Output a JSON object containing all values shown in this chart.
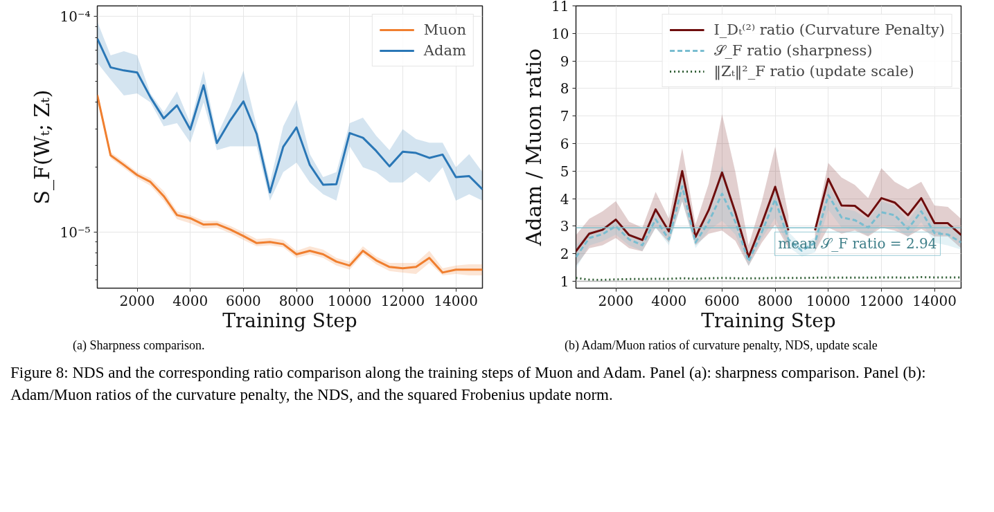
{
  "chart_data": [
    {
      "type": "line",
      "xlabel": "Training Step",
      "ylabel": "S_F(Wₜ; Zₜ)",
      "log": "y",
      "grid": true,
      "legend": "top right",
      "marker": "none",
      "x": [
        500,
        1000,
        1500,
        2000,
        2500,
        3000,
        3500,
        4000,
        4500,
        5000,
        5500,
        6000,
        6500,
        7000,
        7500,
        8000,
        8500,
        9000,
        9500,
        10000,
        10500,
        11000,
        11500,
        12000,
        12500,
        13000,
        13500,
        14000,
        14500,
        15000
      ],
      "xlim": [
        500,
        15000
      ],
      "xticks": [
        2000,
        4000,
        6000,
        8000,
        10000,
        12000,
        14000
      ],
      "ylim": [
        5.5e-06,
        0.000112
      ],
      "yticks": [
        {
          "value": 6e-06,
          "label": null
        },
        {
          "value": 7e-06,
          "label": null
        },
        {
          "value": 8e-06,
          "label": null
        },
        {
          "value": 9e-06,
          "label": null
        },
        {
          "value": 1e-05,
          "label": "10⁻⁵"
        },
        {
          "value": 2e-05,
          "label": null
        },
        {
          "value": 3e-05,
          "label": null
        },
        {
          "value": 4e-05,
          "label": null
        },
        {
          "value": 5e-05,
          "label": null
        },
        {
          "value": 6e-05,
          "label": null
        },
        {
          "value": 7e-05,
          "label": null
        },
        {
          "value": 8e-05,
          "label": null
        },
        {
          "value": 9e-05,
          "label": null
        },
        {
          "value": 0.0001,
          "label": "10⁻⁴"
        }
      ],
      "series": [
        {
          "name": "Muon",
          "color": "#f07f2f",
          "line_style": "solid",
          "values": [
            4.32e-05,
            2.27e-05,
            2.05e-05,
            1.84e-05,
            1.71e-05,
            1.47e-05,
            1.2e-05,
            1.16e-05,
            1.085e-05,
            1.09e-05,
            1.03e-05,
            9.6e-06,
            8.9e-06,
            9e-06,
            8.8e-06,
            7.9e-06,
            8.2e-06,
            7.9e-06,
            7.3e-06,
            7e-06,
            8.2e-06,
            7.4e-06,
            6.9e-06,
            6.8e-06,
            6.9e-06,
            7.6e-06,
            6.5e-06,
            6.7e-06,
            6.7e-06,
            6.7e-06
          ],
          "upper": [
            4.5e-05,
            2.35e-05,
            2.12e-05,
            1.9e-05,
            1.78e-05,
            1.55e-05,
            1.25e-05,
            1.2e-05,
            1.13e-05,
            1.13e-05,
            1.07e-05,
            1e-05,
            9.3e-06,
            9.4e-06,
            9.2e-06,
            8.2e-06,
            8.6e-06,
            8.3e-06,
            7.6e-06,
            7.3e-06,
            8.6e-06,
            7.7e-06,
            7.2e-06,
            7.2e-06,
            7.2e-06,
            8.2e-06,
            6.8e-06,
            7e-06,
            7.1e-06,
            7.1e-06
          ],
          "lower": [
            4.1e-05,
            2.2e-05,
            1.98e-05,
            1.78e-05,
            1.64e-05,
            1.4e-05,
            1.15e-05,
            1.1e-05,
            1.04e-05,
            1.05e-05,
            9.9e-06,
            9.2e-06,
            8.6e-06,
            8.7e-06,
            8.5e-06,
            7.6e-06,
            7.9e-06,
            7.6e-06,
            7e-06,
            6.7e-06,
            7.9e-06,
            7.1e-06,
            6.6e-06,
            6.5e-06,
            6.4e-06,
            7.2e-06,
            6.3e-06,
            6.4e-06,
            6.3e-06,
            6.3e-06
          ]
        },
        {
          "name": "Adam",
          "color": "#2a77b6",
          "line_style": "solid",
          "values": [
            7.9e-05,
            5.81e-05,
            5.62e-05,
            5.5e-05,
            4.22e-05,
            3.37e-05,
            3.87e-05,
            2.99e-05,
            4.8e-05,
            2.59e-05,
            3.29e-05,
            4.04e-05,
            2.85e-05,
            1.53e-05,
            2.49e-05,
            3.06e-05,
            2.05e-05,
            1.66e-05,
            1.67e-05,
            2.88e-05,
            2.74e-05,
            2.38e-05,
            2.02e-05,
            2.36e-05,
            2.33e-05,
            2.21e-05,
            2.29e-05,
            1.8e-05,
            1.82e-05,
            1.58e-05
          ],
          "upper": [
            9.47e-05,
            6.6e-05,
            6.9e-05,
            6.6e-05,
            4.4e-05,
            3.6e-05,
            4.5e-05,
            3.2e-05,
            5.6e-05,
            2.8e-05,
            3.8e-05,
            5.6e-05,
            3.1e-05,
            1.7e-05,
            3.1e-05,
            4.1e-05,
            2.3e-05,
            1.8e-05,
            1.9e-05,
            3.2e-05,
            3.4e-05,
            2.8e-05,
            2.4e-05,
            3e-05,
            2.7e-05,
            2.6e-05,
            2.6e-05,
            2e-05,
            2.3e-05,
            1.9e-05
          ],
          "lower": [
            6.1e-05,
            5.1e-05,
            4.3e-05,
            4.4e-05,
            4e-05,
            3.1e-05,
            3.2e-05,
            2.6e-05,
            4e-05,
            2.4e-05,
            2.5e-05,
            2.5e-05,
            2.5e-05,
            1.4e-05,
            1.9e-05,
            2.1e-05,
            1.7e-05,
            1.5e-05,
            1.4e-05,
            2.5e-05,
            2e-05,
            1.9e-05,
            1.7e-05,
            1.7e-05,
            1.9e-05,
            1.7e-05,
            2e-05,
            1.4e-05,
            1.5e-05,
            1.4e-05
          ]
        }
      ],
      "annotations": [
        "(a) Sharpness comparison."
      ]
    },
    {
      "type": "line",
      "xlabel": "Training Step",
      "ylabel": "Adam / Muon ratio",
      "grid": true,
      "legend": "top right",
      "marker": "none",
      "x": [
        500,
        1000,
        1500,
        2000,
        2500,
        3000,
        3500,
        4000,
        4500,
        5000,
        5500,
        6000,
        6500,
        7000,
        7500,
        8000,
        8500,
        9000,
        9500,
        10000,
        10500,
        11000,
        11500,
        12000,
        12500,
        13000,
        13500,
        14000,
        14500,
        15000
      ],
      "xlim": [
        500,
        15000
      ],
      "xticks": [
        2000,
        4000,
        6000,
        8000,
        10000,
        12000,
        14000
      ],
      "ylim": [
        0.75,
        11
      ],
      "yticks": [
        1,
        2,
        3,
        4,
        5,
        6,
        7,
        8,
        9,
        10,
        11
      ],
      "series": [
        {
          "name": "I_Dₜ⁽²⁾ ratio (Curvature Penalty)",
          "color": "#6e0d0d",
          "line_style": "solid",
          "values": [
            2.09,
            2.73,
            2.87,
            3.24,
            2.68,
            2.5,
            3.61,
            2.81,
            5.0,
            2.61,
            3.59,
            4.95,
            3.5,
            1.88,
            3.1,
            4.43,
            2.85,
            null,
            2.85,
            4.72,
            3.75,
            3.74,
            3.36,
            4.02,
            3.86,
            3.4,
            4.02,
            3.11,
            3.11,
            2.68
          ],
          "upper": [
            2.68,
            3.27,
            3.54,
            3.91,
            3.16,
            2.95,
            4.25,
            3.27,
            5.84,
            3.06,
            4.55,
            7.07,
            4.98,
            2.31,
            3.91,
            5.89,
            3.38,
            null,
            2.95,
            5.3,
            4.77,
            4.5,
            4.02,
            5.11,
            4.61,
            4.34,
            4.61,
            3.75,
            3.7,
            3.27
          ],
          "lower": [
            1.56,
            2.2,
            2.31,
            2.57,
            2.2,
            2.09,
            2.95,
            2.41,
            3.91,
            2.31,
            2.73,
            2.84,
            2.47,
            1.56,
            2.41,
            3.06,
            2.2,
            null,
            2.09,
            2.95,
            2.73,
            2.84,
            2.63,
            2.95,
            2.84,
            2.63,
            2.9,
            2.63,
            2.63,
            2.2
          ]
        },
        {
          "name": "𝒮_F ratio (sharpness)",
          "color": "#79bdd0",
          "line_style": "dashed",
          "values": [
            1.88,
            2.57,
            2.71,
            3.0,
            2.52,
            2.31,
            3.25,
            2.52,
            4.45,
            2.41,
            3.16,
            4.18,
            3.16,
            1.72,
            2.79,
            3.97,
            2.52,
            2.11,
            2.4,
            4.13,
            3.32,
            3.22,
            2.95,
            3.51,
            3.4,
            2.9,
            3.54,
            2.75,
            2.7,
            2.41
          ],
          "upper": [
            2.3,
            2.8,
            2.95,
            3.3,
            2.75,
            2.55,
            3.55,
            2.75,
            4.8,
            2.65,
            3.45,
            5.2,
            3.6,
            1.95,
            3.0,
            4.5,
            2.8,
            2.3,
            2.6,
            4.5,
            3.65,
            3.55,
            3.25,
            3.9,
            3.75,
            3.2,
            3.85,
            3.1,
            3.0,
            2.7
          ],
          "lower": [
            1.45,
            2.3,
            2.45,
            2.7,
            2.3,
            2.1,
            2.95,
            2.3,
            3.9,
            2.2,
            2.85,
            3.2,
            2.7,
            1.55,
            2.55,
            3.3,
            2.25,
            1.9,
            2.05,
            3.6,
            2.95,
            2.9,
            2.65,
            3.05,
            3.0,
            2.6,
            3.15,
            2.4,
            2.3,
            2.15
          ]
        },
        {
          "name": "‖Zₜ‖²_F ratio (update scale)",
          "color": "#2f5d34",
          "line_style": "dotted",
          "values": [
            1.12,
            1.06,
            1.05,
            1.07,
            1.08,
            1.08,
            1.09,
            1.09,
            1.11,
            1.09,
            1.11,
            1.12,
            1.11,
            1.11,
            1.11,
            1.12,
            1.12,
            1.12,
            1.13,
            1.13,
            1.13,
            1.13,
            1.13,
            1.14,
            1.14,
            1.13,
            1.15,
            1.14,
            1.14,
            1.14
          ]
        }
      ],
      "ref_lines": [
        {
          "axis": "y",
          "value": 1,
          "label": null,
          "color": "#b0b0b0"
        },
        {
          "axis": "y",
          "value": 2.94,
          "label": "mean 𝒮_F ratio = 2.94",
          "color": "#7fbfcc"
        }
      ],
      "annotations": [
        "(b) Adam/Muon ratios of curvature penalty, NDS, update scale",
        "Figure 8: NDS and the corresponding ratio comparison along the training steps of Muon and Adam. Panel (a): sharpness comparison. Panel (b): Adam/Muon ratios of the curvature penalty, the NDS, and the squared Frobenius update norm."
      ]
    }
  ]
}
